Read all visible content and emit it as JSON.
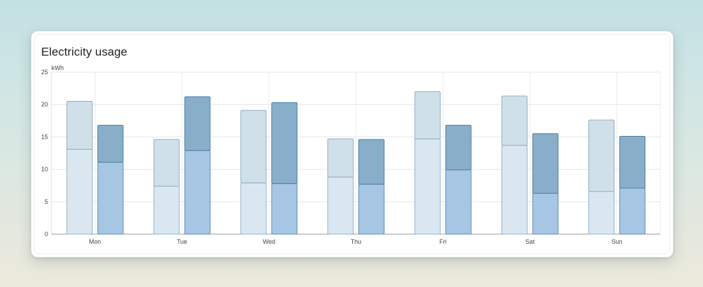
{
  "card": {
    "title": "Electricity usage"
  },
  "chart_data": {
    "type": "bar",
    "title": "Electricity usage",
    "ylabel": "kWh",
    "xlabel": "",
    "ylim": [
      0,
      25
    ],
    "yticks": [
      0,
      5,
      10,
      15,
      20,
      25
    ],
    "grid": true,
    "legend": "none",
    "categories": [
      "Mon",
      "Tue",
      "Wed",
      "Thu",
      "Fri",
      "Sat",
      "Sun"
    ],
    "series": [
      {
        "stack": "first",
        "values": [
          13.1,
          7.4,
          7.9,
          8.8,
          14.7,
          13.7,
          6.6
        ]
      },
      {
        "stack": "first",
        "values": [
          7.4,
          7.2,
          11.2,
          5.9,
          7.3,
          7.6,
          11.0
        ]
      },
      {
        "stack": "second",
        "values": [
          11.1,
          12.9,
          7.8,
          7.7,
          9.9,
          6.3,
          7.1
        ]
      },
      {
        "stack": "second",
        "values": [
          5.7,
          8.3,
          12.5,
          6.9,
          6.9,
          9.2,
          8.0
        ]
      }
    ],
    "colors": {
      "first_lower_fill": "#dae7f1",
      "first_lower_stroke": "#8fb3cf",
      "first_upper_fill": "#d0e0e8",
      "first_upper_stroke": "#90adc2",
      "second_lower_fill": "#a7c6e3",
      "second_lower_stroke": "#5b8eb8",
      "second_upper_fill": "#88aec9",
      "second_upper_stroke": "#4d7ea3"
    }
  }
}
